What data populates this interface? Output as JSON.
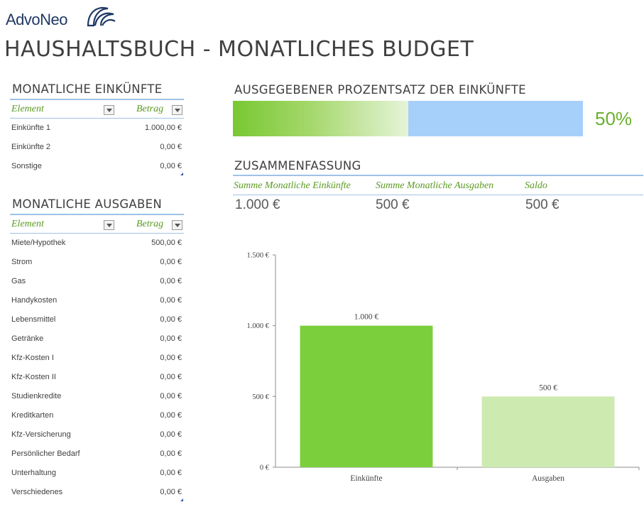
{
  "brand": {
    "name": "AdvoNeo"
  },
  "title": "HAUSHALTSBUCH - MONATLICHES BUDGET",
  "income": {
    "title": "MONATLICHE EINKÜNFTE",
    "col_element": "Element",
    "col_amount": "Betrag",
    "rows": [
      {
        "label": "Einkünfte 1",
        "value": "1.000,00 €"
      },
      {
        "label": "Einkünfte 2",
        "value": "0,00 €"
      },
      {
        "label": "Sonstige",
        "value": "0,00 €"
      }
    ]
  },
  "expenses": {
    "title": "MONATLICHE AUSGABEN",
    "col_element": "Element",
    "col_amount": "Betrag",
    "rows": [
      {
        "label": "Miete/Hypothek",
        "value": "500,00 €"
      },
      {
        "label": "Strom",
        "value": "0,00 €"
      },
      {
        "label": "Gas",
        "value": "0,00 €"
      },
      {
        "label": "Handykosten",
        "value": "0,00 €"
      },
      {
        "label": "Lebensmittel",
        "value": "0,00 €"
      },
      {
        "label": "Getränke",
        "value": "0,00 €"
      },
      {
        "label": "Kfz-Kosten I",
        "value": "0,00 €"
      },
      {
        "label": "Kfz-Kosten II",
        "value": "0,00 €"
      },
      {
        "label": "Studienkredite",
        "value": "0,00 €"
      },
      {
        "label": "Kreditkarten",
        "value": "0,00 €"
      },
      {
        "label": "Kfz-Versicherung",
        "value": "0,00 €"
      },
      {
        "label": "Persönlicher Bedarf",
        "value": "0,00 €"
      },
      {
        "label": "Unterhaltung",
        "value": "0,00 €"
      },
      {
        "label": "Verschiedenes",
        "value": "0,00 €"
      }
    ]
  },
  "percent_spent": {
    "title": "AUSGEGEBENER PROZENTSATZ DER EINKÜNFTE",
    "value_text": "50%",
    "fraction": 0.5
  },
  "summary": {
    "title": "ZUSAMMENFASSUNG",
    "income_label": "Summe Monatliche Einkünfte",
    "income_value": "1.000 €",
    "expenses_label": "Summe Monatliche Ausgaben",
    "expenses_value": "500 €",
    "balance_label": "Saldo",
    "balance_value": "500 €"
  },
  "colors": {
    "accent_green": "#7ccf3c",
    "light_green": "#cdeab0",
    "rule_blue": "#9dc3e6",
    "bar_blue": "#a6d0f9"
  },
  "chart_data": {
    "type": "bar",
    "categories": [
      "Einkünfte",
      "Ausgaben"
    ],
    "values": [
      1000,
      500
    ],
    "data_labels": [
      "1.000 €",
      "500 €"
    ],
    "bar_colors": [
      "#7ccf3c",
      "#cdeab0"
    ],
    "ylim": [
      0,
      1500
    ],
    "yticks": [
      0,
      500,
      1000,
      1500
    ],
    "ytick_labels": [
      "0 €",
      "500 €",
      "1.000 €",
      "1.500 €"
    ],
    "grid": false,
    "legend": "none"
  }
}
